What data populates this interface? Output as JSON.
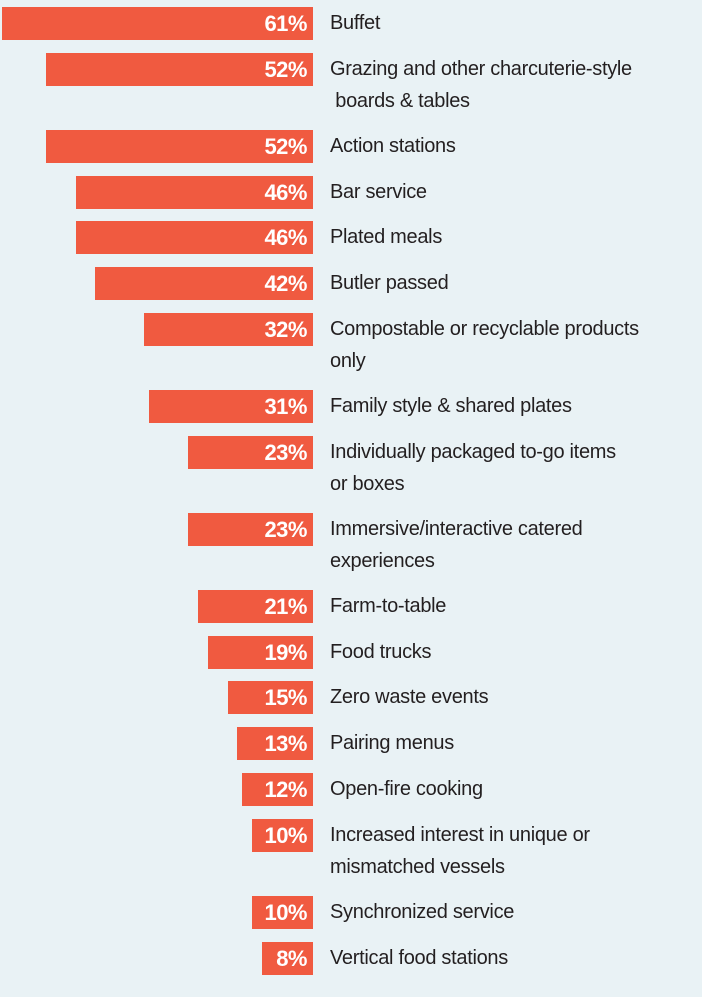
{
  "chart_data": {
    "type": "bar",
    "orientation": "horizontal",
    "bar_color": "#f05a40",
    "background": "#e9f2f5",
    "grid": false,
    "categories": [
      "Buffet",
      "Grazing and other charcuterie-style\n boards & tables",
      "Action stations",
      "Bar service",
      "Plated meals",
      "Butler passed",
      "Compostable or recyclable products\nonly",
      "Family style & shared plates",
      "Individually packaged to-go items\nor boxes",
      "Immersive/interactive catered\nexperiences",
      "Farm-to-table",
      "Food trucks",
      "Zero waste events",
      "Pairing menus",
      "Open-fire cooking",
      "Increased interest in unique or\nmismatched vessels",
      "Synchronized service",
      "Vertical food stations"
    ],
    "values": [
      61,
      52,
      52,
      46,
      46,
      42,
      32,
      31,
      23,
      23,
      21,
      19,
      15,
      13,
      12,
      10,
      10,
      8
    ],
    "data_labels": [
      "61%",
      "52%",
      "52%",
      "46%",
      "46%",
      "42%",
      "32%",
      "31%",
      "23%",
      "23%",
      "21%",
      "19%",
      "15%",
      "13%",
      "12%",
      "10%",
      "10%",
      "8%"
    ]
  }
}
